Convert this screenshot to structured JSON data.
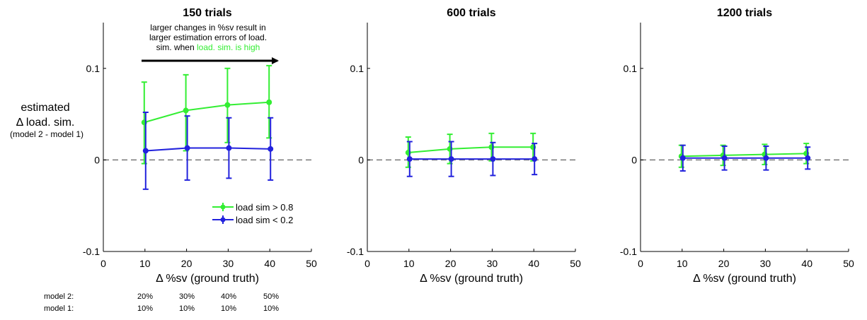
{
  "colors": {
    "high": "#33ee33",
    "low": "#2222dd",
    "zero_line": "#777777",
    "axis": "#000000"
  },
  "ylabel": {
    "line1": "estimated",
    "line2": "Δ load. sim.",
    "line3": "(model 2 - model 1)"
  },
  "legend": {
    "high": "load sim > 0.8",
    "low": "load sim < 0.2"
  },
  "annotation": {
    "line1": "larger changes in %sv result in",
    "line2": "larger estimation errors of load.",
    "line3_prefix": "sim. when ",
    "line3_highlight": "load. sim. is high"
  },
  "model_table": {
    "rows": [
      {
        "label": "model 2:",
        "values": [
          "20%",
          "30%",
          "40%",
          "50%"
        ]
      },
      {
        "label": "model 1:",
        "values": [
          "10%",
          "10%",
          "10%",
          "10%"
        ]
      }
    ]
  },
  "chart_data": [
    {
      "type": "line",
      "title": "150 trials",
      "xlabel": "Δ %sv (ground truth)",
      "ylabel": "estimated Δ load. sim. (model 2 - model 1)",
      "xlim": [
        0,
        50
      ],
      "ylim": [
        -0.1,
        0.15
      ],
      "xticks": [
        0,
        10,
        20,
        30,
        40,
        50
      ],
      "yticks": [
        -0.1,
        0,
        0.1
      ],
      "yticklabels": [
        "-0.1",
        "0",
        "0.1"
      ],
      "x": [
        10,
        20,
        30,
        40
      ],
      "series": [
        {
          "name": "load sim > 0.8",
          "key": "high",
          "values": [
            0.041,
            0.054,
            0.06,
            0.063
          ],
          "err_low": [
            0.045,
            0.044,
            0.041,
            0.039
          ],
          "err_high": [
            0.044,
            0.039,
            0.04,
            0.04
          ]
        },
        {
          "name": "load sim < 0.2",
          "key": "low",
          "values": [
            0.01,
            0.013,
            0.013,
            0.012
          ],
          "err_low": [
            0.042,
            0.035,
            0.033,
            0.034
          ],
          "err_high": [
            0.042,
            0.035,
            0.033,
            0.034
          ]
        }
      ]
    },
    {
      "type": "line",
      "title": "600 trials",
      "xlabel": "Δ %sv (ground truth)",
      "ylabel": "",
      "xlim": [
        0,
        50
      ],
      "ylim": [
        -0.1,
        0.15
      ],
      "xticks": [
        0,
        10,
        20,
        30,
        40,
        50
      ],
      "yticks": [
        -0.1,
        0,
        0.1
      ],
      "yticklabels": [
        "-0.1",
        "0",
        "0.1"
      ],
      "x": [
        10,
        20,
        30,
        40
      ],
      "series": [
        {
          "name": "load sim > 0.8",
          "key": "high",
          "values": [
            0.008,
            0.012,
            0.014,
            0.014
          ],
          "err_low": [
            0.016,
            0.016,
            0.015,
            0.015
          ],
          "err_high": [
            0.017,
            0.016,
            0.015,
            0.015
          ]
        },
        {
          "name": "load sim < 0.2",
          "key": "low",
          "values": [
            0.001,
            0.001,
            0.001,
            0.001
          ],
          "err_low": [
            0.019,
            0.019,
            0.018,
            0.017
          ],
          "err_high": [
            0.019,
            0.019,
            0.018,
            0.017
          ]
        }
      ]
    },
    {
      "type": "line",
      "title": "1200 trials",
      "xlabel": "Δ %sv (ground truth)",
      "ylabel": "",
      "xlim": [
        0,
        50
      ],
      "ylim": [
        -0.1,
        0.15
      ],
      "xticks": [
        0,
        10,
        20,
        30,
        40,
        50
      ],
      "yticks": [
        -0.1,
        0,
        0.1
      ],
      "yticklabels": [
        "-0.1",
        "0",
        "0.1"
      ],
      "x": [
        10,
        20,
        30,
        40
      ],
      "series": [
        {
          "name": "load sim > 0.8",
          "key": "high",
          "values": [
            0.004,
            0.005,
            0.006,
            0.007
          ],
          "err_low": [
            0.012,
            0.011,
            0.011,
            0.011
          ],
          "err_high": [
            0.012,
            0.011,
            0.011,
            0.011
          ]
        },
        {
          "name": "load sim < 0.2",
          "key": "low",
          "values": [
            0.002,
            0.002,
            0.002,
            0.002
          ],
          "err_low": [
            0.014,
            0.013,
            0.013,
            0.012
          ],
          "err_high": [
            0.014,
            0.013,
            0.013,
            0.012
          ]
        }
      ]
    }
  ]
}
